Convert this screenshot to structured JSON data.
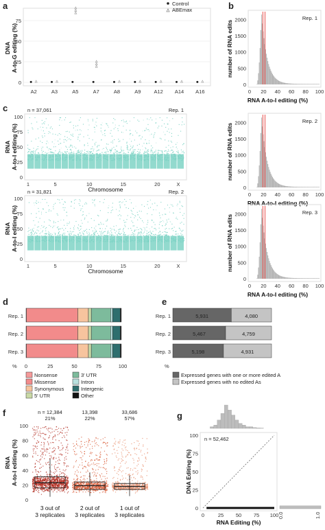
{
  "panel_labels": {
    "a": "a",
    "b": "b",
    "c": "c",
    "d": "d",
    "e": "e",
    "f": "f",
    "g": "g"
  },
  "panel_a": {
    "ylabel_line1": "DNA",
    "ylabel_line2": "A-to-G editing (%)",
    "legend": [
      {
        "name": "Control",
        "color": "#222222",
        "marker": "filled-dot"
      },
      {
        "name": "ABEmax",
        "color": "#999999",
        "marker": "open-triangle"
      }
    ],
    "yticks": [
      "0",
      "25",
      "50",
      "75"
    ],
    "categories": [
      "A2",
      "A3",
      "A5",
      "A7",
      "A8",
      "A9",
      "A12",
      "A14",
      "A16"
    ]
  },
  "panel_b": {
    "ylabel": "number of RNA edits",
    "xlabel": "RNA A-to-I editing (%)",
    "xticks": [
      "0",
      "20",
      "40",
      "60",
      "80",
      "100"
    ],
    "reps": [
      {
        "label": "Rep. 1",
        "yticks": [
          "0",
          "500",
          "1000",
          "1500",
          "2000"
        ]
      },
      {
        "label": "Rep. 2",
        "yticks": [
          "0",
          "500",
          "1000",
          "1500",
          "2000"
        ]
      },
      {
        "label": "Rep. 3",
        "yticks": [
          "0",
          "500",
          "1000",
          "1500",
          "2000"
        ]
      }
    ],
    "mean_line_color": "#e53935"
  },
  "panel_c": {
    "ylabel_line1": "RNA",
    "ylabel_line2": "A-to-I editing (%)",
    "xlabel": "Chromosome",
    "yticks": [
      "0",
      "25",
      "50",
      "75",
      "100"
    ],
    "xticks": [
      "1",
      "5",
      "10",
      "15",
      "20",
      "X"
    ],
    "point_color": "#7fd4c6",
    "reps": [
      {
        "n": "n = 37,061",
        "label": "Rep. 1"
      },
      {
        "n": "n = 31,821",
        "label": "Rep. 2"
      }
    ]
  },
  "chart_data": [
    {
      "type": "bar",
      "title": "",
      "categories": [
        "Rep. 1",
        "Rep. 2",
        "Rep. 3"
      ],
      "series": [
        {
          "name": "Nonsense",
          "color": "#f59a9a",
          "values": [
            0.5,
            0.5,
            0.5
          ]
        },
        {
          "name": "Missense",
          "color": "#f28b8b",
          "values": [
            53,
            53,
            53
          ]
        },
        {
          "name": "Synonymous",
          "color": "#f7c49e",
          "values": [
            11,
            11,
            11
          ]
        },
        {
          "name": "5' UTR",
          "color": "#c9d9a6",
          "values": [
            3,
            3,
            3
          ]
        },
        {
          "name": "3' UTR",
          "color": "#7dbb9c",
          "values": [
            20,
            20,
            20
          ]
        },
        {
          "name": "Intron",
          "color": "#b8e0de",
          "values": [
            2,
            2,
            2
          ]
        },
        {
          "name": "Intergenic",
          "color": "#2e6e6e",
          "values": [
            8,
            8,
            8
          ]
        },
        {
          "name": "Other",
          "color": "#111111",
          "values": [
            1,
            1,
            1
          ]
        }
      ],
      "xlabel": "%",
      "xticks": [
        "0",
        "25",
        "50",
        "75",
        "100"
      ],
      "xlim": [
        0,
        100
      ],
      "orientation": "horizontal",
      "stacked": true
    },
    {
      "type": "bar",
      "title": "",
      "categories": [
        "Rep. 1",
        "Rep. 2",
        "Rep. 3"
      ],
      "series": [
        {
          "name": "Expressed genes with one or more edited A",
          "color": "#666666",
          "values": [
            5931,
            5467,
            5198
          ]
        },
        {
          "name": "Expressed genes with no edited As",
          "color": "#c4c4c4",
          "values": [
            4080,
            4759,
            4931
          ]
        }
      ],
      "orientation": "horizontal",
      "stacked": true
    },
    {
      "type": "box",
      "title": "",
      "categories": [
        "3 out of\n3 replicates",
        "2 out of\n3 replicates",
        "1 out of\n3 replicates"
      ],
      "n": [
        "n = 12,384",
        "13,398",
        "33,686"
      ],
      "pct": [
        "21%",
        "22%",
        "57%"
      ],
      "median": [
        23,
        19,
        18
      ],
      "q1": [
        16,
        14,
        14
      ],
      "q3": [
        31,
        24,
        22
      ],
      "whisker": [
        [
          4,
          55
        ],
        [
          5,
          37
        ],
        [
          5,
          33
        ]
      ],
      "colors": [
        "#b22a1f",
        "#d95e3a",
        "#e8906e"
      ],
      "ylabel": "RNA\nA-to-I editing (%)",
      "yticks": [
        "0",
        "20",
        "40",
        "60",
        "80",
        "100"
      ],
      "ylim": [
        0,
        100
      ]
    },
    {
      "type": "scatter",
      "title": "",
      "n": "n = 52,462",
      "xlabel": "RNA Editing (%)",
      "ylabel": "DNA Editing (%)",
      "xticks": [
        "0",
        "25",
        "50",
        "75",
        "100"
      ],
      "yticks": [
        "0",
        "25",
        "50",
        "75",
        "100"
      ],
      "xlim": [
        0,
        100
      ],
      "ylim": [
        0,
        100
      ],
      "x_range_points": [
        5,
        100
      ],
      "y_value_points": 0,
      "right_marginal_tick": [
        "0.0",
        "1.0"
      ]
    }
  ],
  "panel_d": {
    "legend_rows": [
      [
        "Nonsense",
        "3' UTR"
      ],
      [
        "Missense",
        "Intron"
      ],
      [
        "Synonymous",
        "Intergenic"
      ],
      [
        "5' UTR",
        "Other"
      ]
    ]
  },
  "panel_e": {
    "labels": {
      "a": "5,931",
      "b": "4,080",
      "c": "5,467",
      "d": "4,759",
      "e": "5,198",
      "f": "4,931"
    }
  }
}
